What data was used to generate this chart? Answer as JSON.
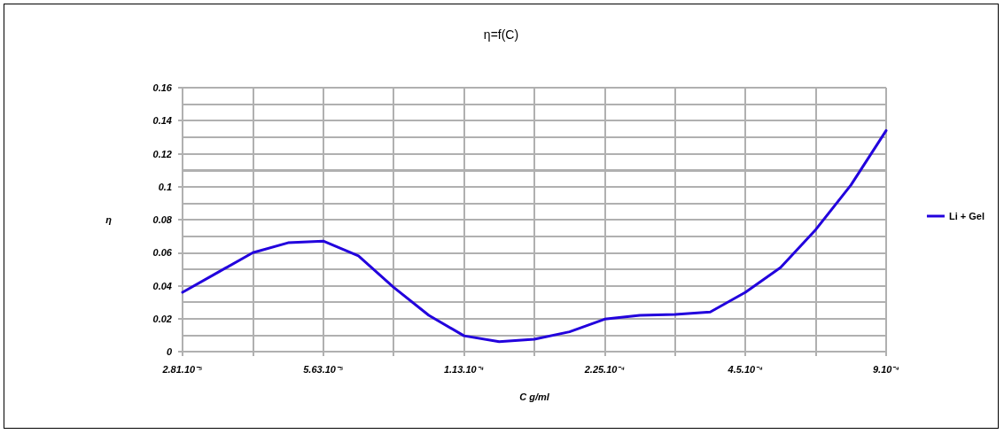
{
  "chart_data": {
    "type": "line",
    "title": "η=f(C)",
    "xlabel": "C g/ml",
    "ylabel": "η",
    "grid": true,
    "legend": "right",
    "marker": "none",
    "line_style": "solid",
    "categories": [
      "2.81.10⁻⁵",
      null,
      null,
      null,
      "5.63.10⁻⁵",
      null,
      null,
      null,
      "1.13.10⁻⁴",
      null,
      null,
      null,
      "2.25.10⁻⁴",
      null,
      null,
      null,
      "4.5.10⁻⁴",
      null,
      null,
      null,
      "9.10⁻⁴"
    ],
    "ylim": [
      0,
      0.16
    ],
    "yticks": [
      0,
      {
        "value": 0.01,
        "label": null
      },
      0.02,
      {
        "value": 0.03,
        "label": null
      },
      0.04,
      {
        "value": 0.05,
        "label": null
      },
      0.06,
      {
        "value": 0.07,
        "label": null
      },
      0.08,
      {
        "value": 0.09,
        "label": null
      },
      0.1,
      0.12,
      {
        "value": 0.13,
        "label": null
      },
      0.14,
      {
        "value": 0.15,
        "label": null
      },
      0.16
    ],
    "ref_lines": [
      {
        "axis": "y",
        "value": 0.11,
        "color": "#b0b0b0"
      }
    ],
    "series": [
      {
        "name": "Li + Gel",
        "color": "#2200dd",
        "values": [
          0.036,
          0.048,
          0.06,
          0.066,
          0.067,
          0.058,
          0.039,
          0.022,
          0.0096,
          0.006,
          0.0075,
          0.012,
          0.0197,
          0.022,
          0.0225,
          0.024,
          0.036,
          0.051,
          0.074,
          0.101,
          0.134
        ]
      }
    ]
  }
}
